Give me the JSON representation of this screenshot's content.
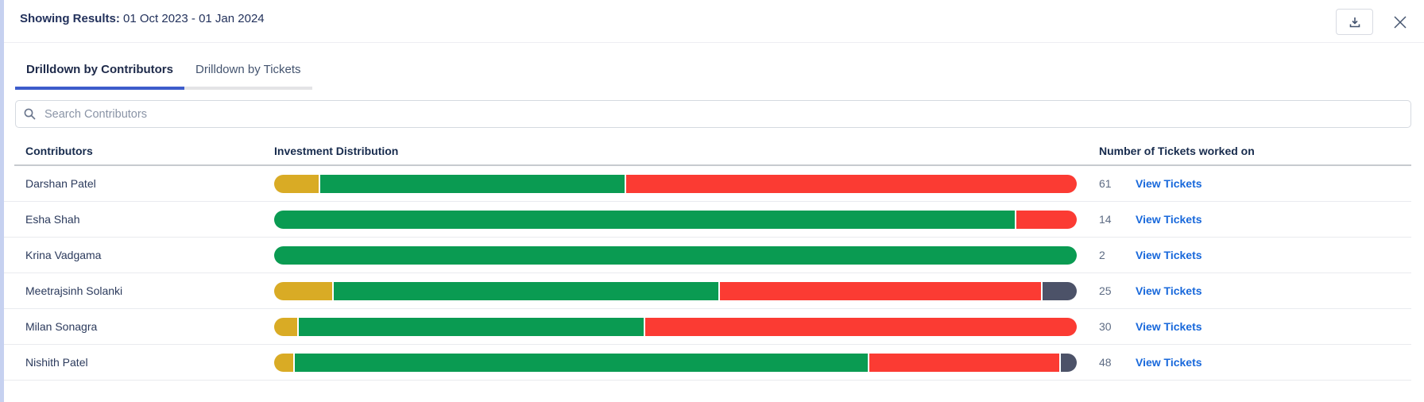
{
  "header": {
    "results_label": "Showing Results:",
    "results_range": " 01 Oct 2023 - 01 Jan 2024"
  },
  "tabs": [
    {
      "label": "Drilldown by Contributors",
      "active": true
    },
    {
      "label": "Drilldown by Tickets",
      "active": false
    }
  ],
  "search": {
    "placeholder": "Search Contributors"
  },
  "table": {
    "columns": [
      "Contributors",
      "Investment Distribution",
      "Number of Tickets worked on"
    ],
    "link_label": "View Tickets",
    "rows": [
      {
        "name": "Darshan Patel",
        "tickets": "61",
        "segments": [
          {
            "color": "yellow",
            "pct": 5.6
          },
          {
            "color": "green",
            "pct": 38.0
          },
          {
            "color": "red",
            "pct": 56.4
          }
        ]
      },
      {
        "name": "Esha Shah",
        "tickets": "14",
        "segments": [
          {
            "color": "green",
            "pct": 92.5
          },
          {
            "color": "red",
            "pct": 7.5
          }
        ]
      },
      {
        "name": "Krina Vadgama",
        "tickets": "2",
        "segments": [
          {
            "color": "green",
            "pct": 100
          }
        ]
      },
      {
        "name": "Meetrajsinh Solanki",
        "tickets": "25",
        "segments": [
          {
            "color": "yellow",
            "pct": 7.3
          },
          {
            "color": "green",
            "pct": 48.2
          },
          {
            "color": "red",
            "pct": 40.2
          },
          {
            "color": "slate",
            "pct": 4.3
          }
        ]
      },
      {
        "name": "Milan Sonagra",
        "tickets": "30",
        "segments": [
          {
            "color": "yellow",
            "pct": 2.9
          },
          {
            "color": "green",
            "pct": 43.1
          },
          {
            "color": "red",
            "pct": 54.0
          }
        ]
      },
      {
        "name": "Nishith Patel",
        "tickets": "48",
        "segments": [
          {
            "color": "yellow",
            "pct": 2.4
          },
          {
            "color": "green",
            "pct": 71.8
          },
          {
            "color": "red",
            "pct": 23.8
          },
          {
            "color": "slate",
            "pct": 2.0
          }
        ]
      }
    ]
  },
  "colors": {
    "yellow": "#D9AB25",
    "green": "#0A9B52",
    "red": "#FB3B33",
    "slate": "#4C5268",
    "link": "#1868DB",
    "tab_active_underline": "#3D5CCB",
    "icon": "#44546F"
  }
}
